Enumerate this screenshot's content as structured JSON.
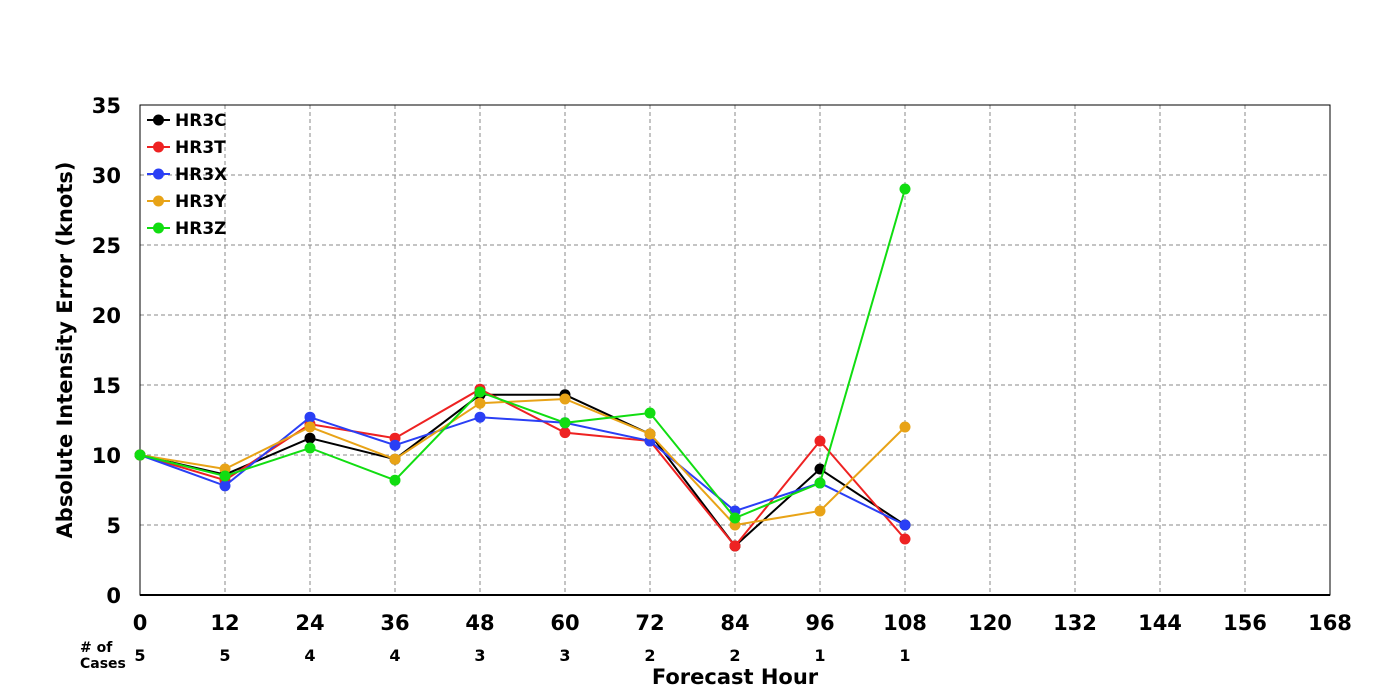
{
  "chart_data": {
    "type": "line",
    "xlabel": "Forecast Hour",
    "ylabel": "Absolute Intensity Error (knots)",
    "xlim": [
      0,
      168
    ],
    "ylim": [
      0,
      35
    ],
    "x_ticks": [
      0,
      12,
      24,
      36,
      48,
      60,
      72,
      84,
      96,
      108,
      120,
      132,
      144,
      156,
      168
    ],
    "y_ticks": [
      0,
      5,
      10,
      15,
      20,
      25,
      30,
      35
    ],
    "grid": true,
    "legend_position": "top-left",
    "x": [
      0,
      12,
      24,
      36,
      48,
      60,
      72,
      84,
      96,
      108
    ],
    "series": [
      {
        "name": "HR3C",
        "color": "#000000",
        "values": [
          10,
          8.6,
          11.2,
          9.7,
          14.3,
          14.3,
          11.5,
          3.5,
          9,
          5
        ]
      },
      {
        "name": "HR3T",
        "color": "#ee2222",
        "values": [
          10,
          8.2,
          12.2,
          11.2,
          14.7,
          11.6,
          11,
          3.5,
          11,
          4
        ]
      },
      {
        "name": "HR3X",
        "color": "#2a3ff5",
        "values": [
          10,
          7.8,
          12.7,
          10.7,
          12.7,
          12.3,
          11,
          6,
          8,
          5
        ]
      },
      {
        "name": "HR3Y",
        "color": "#e8a317",
        "values": [
          10,
          9,
          12,
          9.7,
          13.7,
          14,
          11.5,
          5,
          6,
          12
        ]
      },
      {
        "name": "HR3Z",
        "color": "#11dd11",
        "values": [
          10,
          8.5,
          10.5,
          8.2,
          14.5,
          12.3,
          13,
          5.5,
          8,
          29
        ]
      }
    ],
    "cases_label": [
      "# of",
      "Cases"
    ],
    "cases": [
      5,
      5,
      4,
      4,
      3,
      3,
      2,
      2,
      1,
      1
    ]
  }
}
